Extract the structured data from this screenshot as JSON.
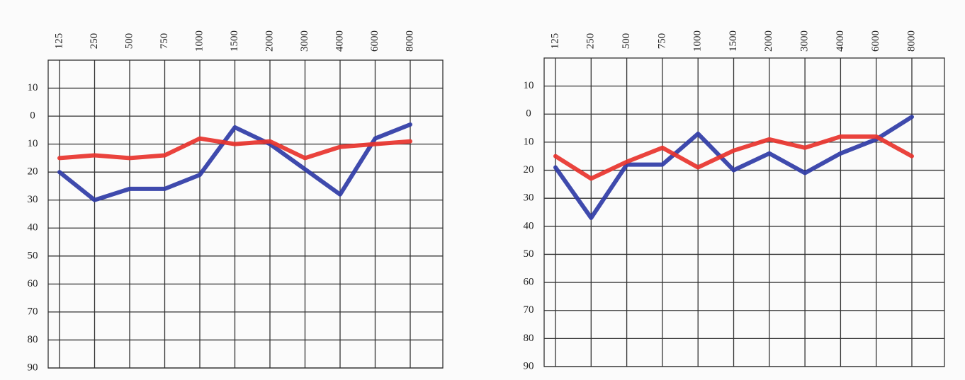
{
  "chart_data": [
    {
      "type": "line",
      "categories": [
        "125",
        "250",
        "500",
        "750",
        "1000",
        "1500",
        "2000",
        "3000",
        "4000",
        "6000",
        "8000"
      ],
      "series": [
        {
          "color": "#2f3ba6",
          "values": [
            20,
            30,
            26,
            26,
            21,
            4,
            10,
            19,
            28,
            8,
            3
          ]
        },
        {
          "color": "#e8332c",
          "values": [
            15,
            14,
            15,
            14,
            8,
            10,
            9,
            15,
            11,
            10,
            9
          ]
        }
      ],
      "ylim": [
        -20,
        90
      ],
      "yticks": [
        {
          "value": -10,
          "label": "10"
        },
        0,
        10,
        20,
        30,
        40,
        50,
        60,
        70,
        80,
        90
      ],
      "y_inverted": true,
      "grid": true
    },
    {
      "type": "line",
      "categories": [
        "125",
        "250",
        "500",
        "750",
        "1000",
        "1500",
        "2000",
        "3000",
        "4000",
        "6000",
        "8000"
      ],
      "series": [
        {
          "color": "#2f3ba6",
          "values": [
            19,
            37,
            18,
            18,
            7,
            20,
            14,
            21,
            14,
            9,
            1
          ]
        },
        {
          "color": "#e8332c",
          "values": [
            15,
            23,
            17,
            12,
            19,
            13,
            9,
            12,
            8,
            8,
            15
          ]
        }
      ],
      "ylim": [
        -20,
        90
      ],
      "yticks": [
        {
          "value": -10,
          "label": "10"
        },
        0,
        10,
        20,
        30,
        40,
        50,
        60,
        70,
        80,
        90
      ],
      "y_inverted": true,
      "grid": true
    }
  ]
}
